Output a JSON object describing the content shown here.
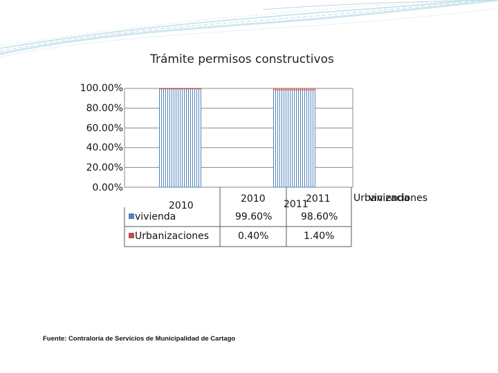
{
  "chart_data": {
    "type": "bar",
    "title": "Trámite permisos constructivos",
    "categories": [
      "2010",
      "2011"
    ],
    "series": [
      {
        "name": "vivienda",
        "values": [
          99.6,
          98.6
        ],
        "labels": [
          "99.60%",
          "98.60%"
        ],
        "color": "#4f81bd"
      },
      {
        "name": "Urbanizaciones",
        "values": [
          0.4,
          1.4
        ],
        "labels": [
          "0.40%",
          "1.40%"
        ],
        "color": "#c0504d"
      }
    ],
    "y_ticks": [
      "0.00%",
      "20.00%",
      "40.00%",
      "60.00%",
      "80.00%",
      "100.00%"
    ],
    "ylim": [
      0,
      100
    ],
    "grid": true,
    "legend": [
      "Urbanizaciones",
      "vivienda"
    ],
    "legend_position": "right"
  },
  "table": {
    "headers": [
      "2010",
      "2011"
    ],
    "stray_labels": [
      "2010",
      "2011"
    ],
    "rows": [
      {
        "label": "vivienda",
        "cells": [
          "99.60%",
          "98.60%"
        ]
      },
      {
        "label": "Urbanizaciones",
        "cells": [
          "0.40%",
          "1.40%"
        ]
      }
    ]
  },
  "source": "Fuente: Contraloría de Servicios de Municipalidad de Cartago",
  "colors": {
    "vivienda": "#4f81bd",
    "urbanizaciones": "#c0504d",
    "grid": "#888888",
    "waves": "#c9e3ee"
  }
}
